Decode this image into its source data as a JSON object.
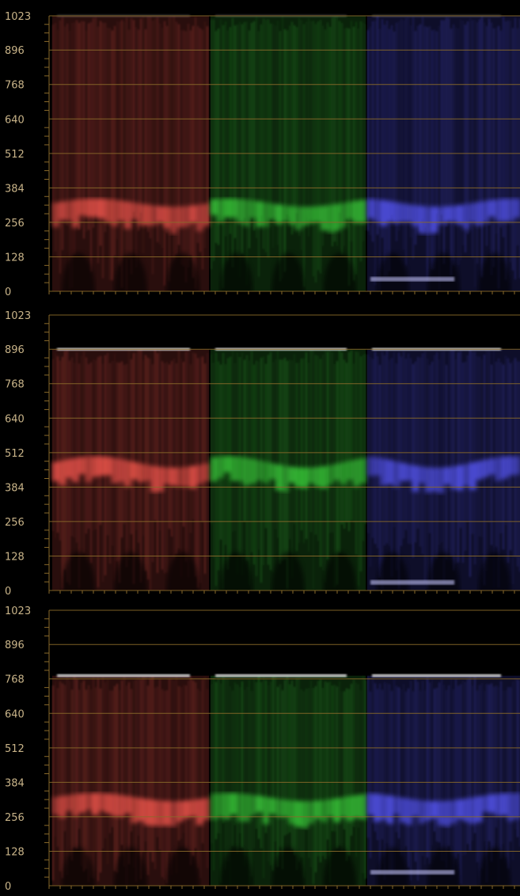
{
  "app": {
    "view": "RGB Parade Waveform Scopes"
  },
  "scale": {
    "min": 0,
    "max": 1023,
    "tick_labels": [
      "1023",
      "896",
      "768",
      "640",
      "512",
      "384",
      "256",
      "128",
      "0"
    ]
  },
  "colors": {
    "background": "#000000",
    "grid": "#8a6a2a",
    "label": "#c9b489",
    "red": "#ff5a50",
    "green": "#3cd23c",
    "blue": "#5a5aff"
  },
  "channels": [
    "red",
    "green",
    "blue"
  ],
  "panels": [
    {
      "name": "waveform-panel-1",
      "clip_top": 1023,
      "dense_band": [
        180,
        380
      ],
      "floor_trace": {
        "blue": 45
      }
    },
    {
      "name": "waveform-panel-2",
      "clip_top": 896,
      "dense_band": [
        280,
        560
      ],
      "floor_trace": {
        "blue": 30
      }
    },
    {
      "name": "waveform-panel-3",
      "clip_top": 780,
      "dense_band": [
        180,
        380
      ],
      "floor_trace": {
        "blue": 50
      }
    }
  ]
}
